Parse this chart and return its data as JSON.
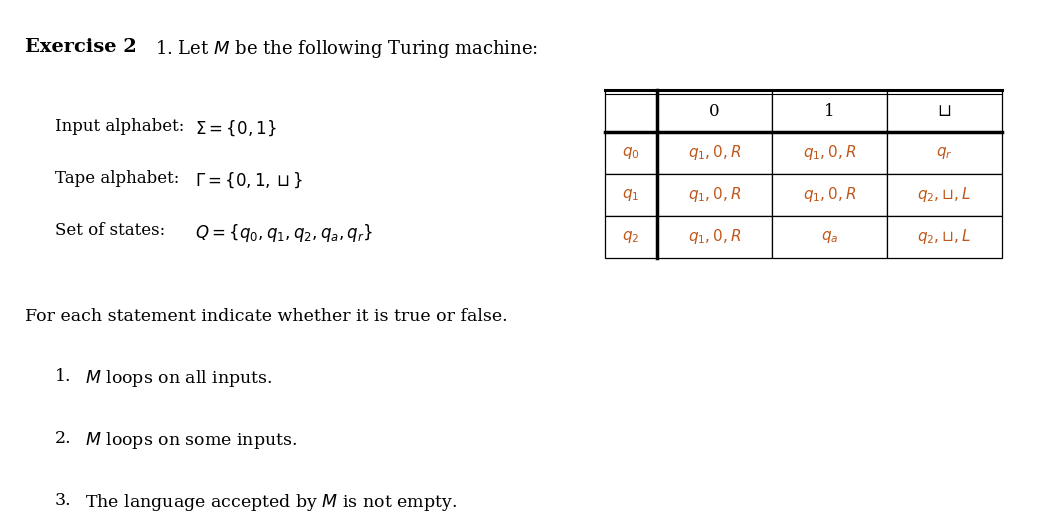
{
  "title_bold": "Exercise 2",
  "subtitle": "1. Let $M$ be the following Turing machine:",
  "background_color": "#ffffff",
  "text_color": "#000000",
  "cell_text_color": "#c0571a",
  "table_header": [
    "",
    "0",
    "1",
    "⊔"
  ],
  "table_rows": [
    [
      "$q_0$",
      "$q_1, 0, R$",
      "$q_1, 0, R$",
      "$q_r$"
    ],
    [
      "$q_1$",
      "$q_1, 0, R$",
      "$q_1, 0, R$",
      "$q_2, ⊔, L$"
    ],
    [
      "$q_2$",
      "$q_1, 0, R$",
      "$q_a$",
      "$q_2, ⊔, L$"
    ]
  ],
  "info_lines": [
    [
      "Input alphabet:",
      "$\\Sigma = \\{0, 1\\}$"
    ],
    [
      "Tape alphabet:",
      "$\\Gamma = \\{0, 1, \\sqcup\\}$"
    ],
    [
      "Set of states:",
      "$Q = \\{q_0, q_1, q_2, q_a, q_r\\}$"
    ]
  ],
  "statements_intro": "For each statement indicate whether it is true or false.",
  "statements": [
    "$M$ loops on all inputs.",
    "$M$ loops on some inputs.",
    "The language accepted by $M$ is not empty."
  ],
  "figsize": [
    10.45,
    5.23
  ],
  "dpi": 100
}
